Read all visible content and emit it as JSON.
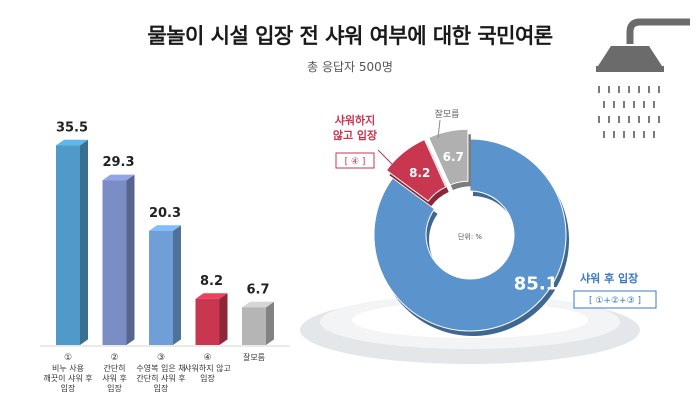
{
  "title": "물놀이 시설 입장 전 샤워 여부에 대한 국민여론",
  "subtitle": "총 응답자 500명",
  "colors": {
    "bar1": "#4f9ac8",
    "bar2": "#7a8dc4",
    "bar3": "#6f9fd6",
    "bar4": "#c8364f",
    "bar5": "#b5b5b5",
    "donut_main": "#5b93cc",
    "donut_red": "#c8364f",
    "donut_gray": "#b0b0b0",
    "accent_blue": "#3a78c2",
    "accent_red": "#c8364f"
  },
  "icons": [
    "shower-icon"
  ],
  "chart_data": [
    {
      "type": "bar",
      "categories": [
        {
          "num": "①",
          "lines": [
            "비누 사용",
            "깨끗이 샤워 후",
            "입장"
          ]
        },
        {
          "num": "②",
          "lines": [
            "간단히",
            "샤워 후",
            "입장"
          ]
        },
        {
          "num": "③",
          "lines": [
            "수영복 입은 채",
            "간단히 샤워 후",
            "입장"
          ]
        },
        {
          "num": "④",
          "lines": [
            "샤워하지 않고",
            "입장"
          ]
        },
        {
          "num": "",
          "lines": [
            "잘모름"
          ]
        }
      ],
      "values": [
        35.5,
        29.3,
        20.3,
        8.2,
        6.7
      ],
      "value_labels": [
        "35.5",
        "29.3",
        "20.3",
        "8.2",
        "6.7"
      ],
      "ylim": [
        0,
        40
      ]
    },
    {
      "type": "pie",
      "unit_label": "단위: %",
      "slices": [
        {
          "label": "샤워 후 입장",
          "sub": "[ ①+②+③ ]",
          "value": 85.1,
          "value_label": "85.1"
        },
        {
          "label": "샤워하지 않고 입장",
          "label_lines": [
            "샤워하지",
            "않고 입장"
          ],
          "sub": "[ ④ ]",
          "value": 8.2,
          "value_label": "8.2"
        },
        {
          "label": "잘모름",
          "sub": "",
          "value": 6.7,
          "value_label": "6.7"
        }
      ]
    }
  ]
}
